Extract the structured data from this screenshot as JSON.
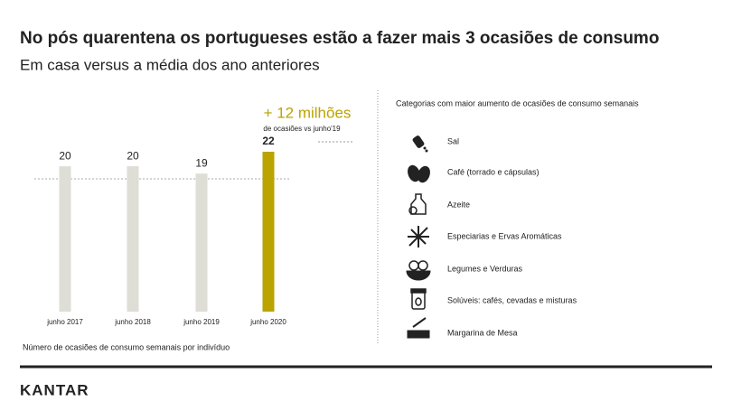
{
  "chart_data": {
    "type": "bar",
    "title": "No pós quarentena os portugueses estão a fazer mais 3 ocasiões de consumo",
    "subtitle": "Em casa versus a média dos ano anteriores",
    "categories": [
      "junho 2017",
      "junho 2018",
      "junho 2019",
      "junho 2020"
    ],
    "values": [
      20,
      20,
      19,
      22
    ],
    "colors": [
      "#deded6",
      "#deded6",
      "#deded6",
      "#bba300"
    ],
    "ylim": [
      0,
      22
    ],
    "annotation": "+ 12 milhões",
    "annotation_note": "de ocasiões vs junho'19",
    "footnote": "Número de ocasiões de consumo semanais por indivíduo"
  },
  "panel": {
    "heading": "Categorias com maior aumento de ocasiões de consumo semanais",
    "items": [
      "Sal",
      "Café (torrado e cápsulas)",
      "Azeite",
      "Especiarias e Ervas Aromáticas",
      "Legumes e Verduras",
      "Solúveis: cafés, cevadas e misturas",
      "Margarina de Mesa"
    ]
  },
  "brand": "KANTAR"
}
